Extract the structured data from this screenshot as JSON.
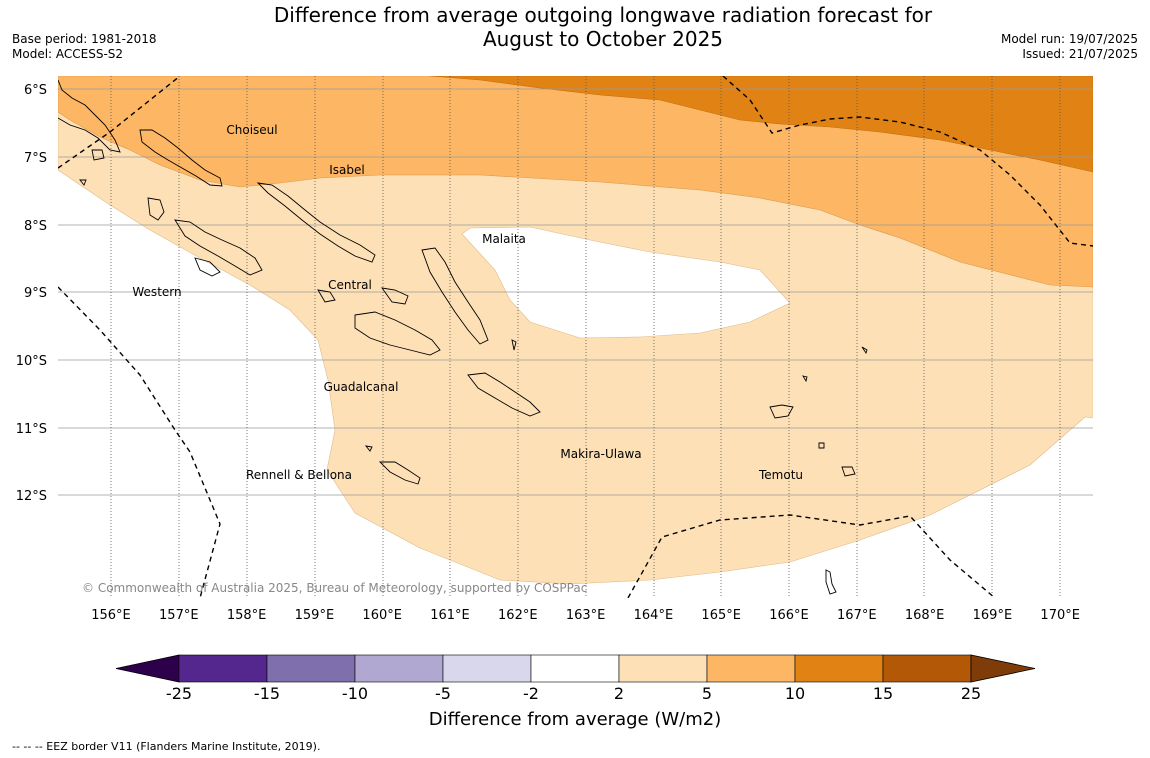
{
  "title_line1": "Difference from average outgoing longwave radiation forecast for",
  "title_line2": "August to October 2025",
  "base_period": "Base period: 1981-2018",
  "model": "Model: ACCESS-S2",
  "model_run": "Model run: 19/07/2025",
  "issued": "Issued: 21/07/2025",
  "copyright": "© Commonwealth of Australia 2025, Bureau of Meteorology, supported by COSPPac",
  "lat_labels": [
    "6°S",
    "7°S",
    "8°S",
    "9°S",
    "10°S",
    "11°S",
    "12°S"
  ],
  "lon_labels": [
    "156°E",
    "157°E",
    "158°E",
    "159°E",
    "160°E",
    "161°E",
    "162°E",
    "163°E",
    "164°E",
    "165°E",
    "166°E",
    "167°E",
    "168°E",
    "169°E",
    "170°E"
  ],
  "provinces": [
    "Choiseul",
    "Isabel",
    "Malaita",
    "Western",
    "Central",
    "Guadalcanal",
    "Makira-Ulawa",
    "Rennell & Bellona",
    "Temotu"
  ],
  "colorbar": {
    "ticks": [
      "-25",
      "-15",
      "-10",
      "-5",
      "-2",
      "2",
      "5",
      "10",
      "15",
      "25"
    ],
    "colors": [
      "#54278f",
      "#7f6fac",
      "#b1a8d2",
      "#d9d7ec",
      "#ffffff",
      "#fee0b6",
      "#fdb663",
      "#e08214",
      "#b35806"
    ],
    "extend_low_color": "#2d004b",
    "extend_high_color": "#7f3b08",
    "label": "Difference from average (W/m2)"
  },
  "footnote": "--  --  -- EEZ border V11 (Flanders Marine Institute, 2019)."
}
